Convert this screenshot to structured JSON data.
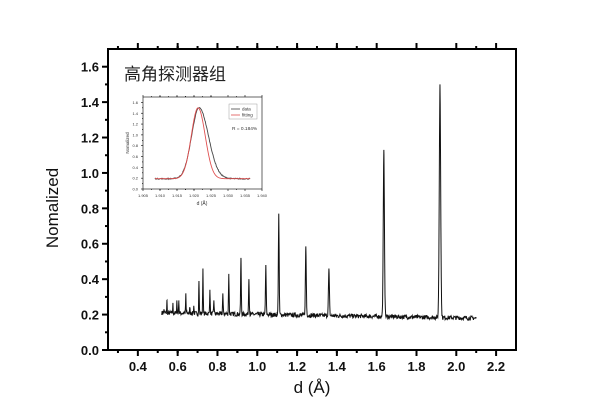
{
  "chart_data": {
    "type": "line",
    "title": "高角探测器组",
    "xlabel": "d (Å)",
    "ylabel": "Nomalized",
    "xlim": [
      0.25,
      2.3
    ],
    "ylim": [
      0,
      1.7
    ],
    "xticks": [
      "0.4",
      "0.6",
      "0.8",
      "1.0",
      "1.2",
      "1.4",
      "1.6",
      "1.8",
      "2.0",
      "2.2"
    ],
    "yticks": [
      "0.0",
      "0.2",
      "0.4",
      "0.6",
      "0.8",
      "1.0",
      "1.2",
      "1.4",
      "1.6"
    ],
    "grid": false,
    "line_color": "#111111",
    "data_range": [
      0.52,
      2.1
    ],
    "baseline": {
      "start": 0.21,
      "end": 0.18,
      "noise": 0.012
    },
    "peaks": [
      {
        "d": 0.531,
        "y": 0.23
      },
      {
        "d": 0.546,
        "y": 0.28
      },
      {
        "d": 0.576,
        "y": 0.26
      },
      {
        "d": 0.596,
        "y": 0.28
      },
      {
        "d": 0.606,
        "y": 0.28
      },
      {
        "d": 0.641,
        "y": 0.32
      },
      {
        "d": 0.661,
        "y": 0.24
      },
      {
        "d": 0.681,
        "y": 0.25
      },
      {
        "d": 0.707,
        "y": 0.39
      },
      {
        "d": 0.727,
        "y": 0.46
      },
      {
        "d": 0.762,
        "y": 0.34
      },
      {
        "d": 0.782,
        "y": 0.28
      },
      {
        "d": 0.827,
        "y": 0.32
      },
      {
        "d": 0.857,
        "y": 0.43
      },
      {
        "d": 0.918,
        "y": 0.52
      },
      {
        "d": 0.958,
        "y": 0.4
      },
      {
        "d": 1.043,
        "y": 0.48
      },
      {
        "d": 1.108,
        "y": 0.77
      },
      {
        "d": 1.244,
        "y": 0.585
      },
      {
        "d": 1.36,
        "y": 0.46
      },
      {
        "d": 1.636,
        "y": 1.13
      },
      {
        "d": 1.918,
        "y": 1.5
      }
    ],
    "inset": {
      "type": "line",
      "xlabel": "d (Å)",
      "ylabel": "Nomalized",
      "xlim": [
        1.905,
        1.94
      ],
      "ylim": [
        0,
        1.7
      ],
      "xticks": [
        "1.905",
        "1.910",
        "1.915",
        "1.920",
        "1.925",
        "1.930",
        "1.935",
        "1.940"
      ],
      "yticks": [
        "0.0",
        "0.2",
        "0.4",
        "0.6",
        "0.8",
        "1.0",
        "1.2",
        "1.4",
        "1.6"
      ],
      "legend": [
        "data",
        "fitting"
      ],
      "legend_position": "top-right",
      "annotation": "R = 0.184%",
      "series": [
        {
          "name": "data",
          "color": "#444444",
          "center": 1.9215,
          "height": 1.5,
          "width": 0.0022,
          "baseline": 0.19,
          "range": [
            1.9085,
            1.9365
          ]
        },
        {
          "name": "fitting",
          "color": "#e05050",
          "center": 1.9212,
          "height": 1.5,
          "width": 0.002,
          "baseline": 0.19,
          "range": [
            1.9085,
            1.9365
          ]
        }
      ]
    }
  }
}
